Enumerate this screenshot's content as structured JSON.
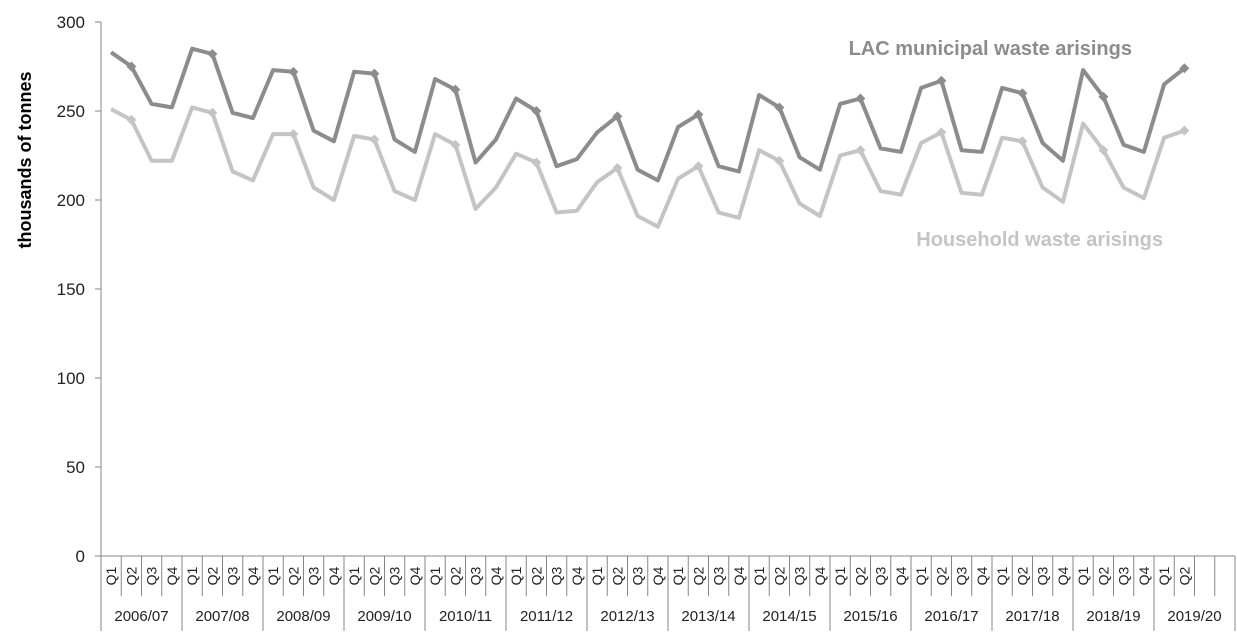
{
  "chart_data": {
    "type": "line",
    "ylabel": "thousands of tonnes",
    "ylim": [
      0,
      300
    ],
    "yticks": [
      "0",
      "50",
      "100",
      "150",
      "200",
      "250",
      "300"
    ],
    "quarter_labels": [
      "Q1",
      "Q2",
      "Q3",
      "Q4",
      "Q1",
      "Q2",
      "Q3",
      "Q4",
      "Q1",
      "Q2",
      "Q3",
      "Q4",
      "Q1",
      "Q2",
      "Q3",
      "Q4",
      "Q1",
      "Q2",
      "Q3",
      "Q4",
      "Q1",
      "Q2",
      "Q3",
      "Q4",
      "Q1",
      "Q2",
      "Q3",
      "Q4",
      "Q1",
      "Q2",
      "Q3",
      "Q4",
      "Q1",
      "Q2",
      "Q3",
      "Q4",
      "Q1",
      "Q2",
      "Q3",
      "Q4",
      "Q1",
      "Q2",
      "Q3",
      "Q4",
      "Q1",
      "Q2",
      "Q3",
      "Q4",
      "Q1",
      "Q2",
      "Q3",
      "Q4",
      "Q1",
      "Q2"
    ],
    "years": [
      "2006/07",
      "2007/08",
      "2008/09",
      "2009/10",
      "2010/11",
      "2011/12",
      "2012/13",
      "2013/14",
      "2014/15",
      "2015/16",
      "2016/17",
      "2017/18",
      "2018/19",
      "2019/20"
    ],
    "grid": false,
    "series": [
      {
        "name": "LAC municipal waste arisings",
        "color": "#8c8c8c",
        "values": [
          283,
          275,
          254,
          252,
          285,
          282,
          249,
          246,
          273,
          272,
          239,
          233,
          272,
          271,
          234,
          227,
          268,
          262,
          221,
          234,
          257,
          250,
          219,
          223,
          238,
          247,
          217,
          211,
          241,
          248,
          219,
          216,
          259,
          252,
          224,
          217,
          254,
          257,
          229,
          227,
          263,
          267,
          228,
          227,
          263,
          260,
          232,
          222,
          273,
          258,
          231,
          227,
          265,
          274
        ]
      },
      {
        "name": "Household waste arisings",
        "color": "#c4c4c4",
        "values": [
          251,
          245,
          222,
          222,
          252,
          249,
          216,
          211,
          237,
          237,
          207,
          200,
          236,
          234,
          205,
          200,
          237,
          231,
          195,
          207,
          226,
          221,
          193,
          194,
          210,
          218,
          191,
          185,
          212,
          219,
          193,
          190,
          228,
          222,
          198,
          191,
          225,
          228,
          205,
          203,
          232,
          238,
          204,
          203,
          235,
          233,
          207,
          199,
          243,
          228,
          207,
          201,
          235,
          239
        ]
      }
    ]
  }
}
